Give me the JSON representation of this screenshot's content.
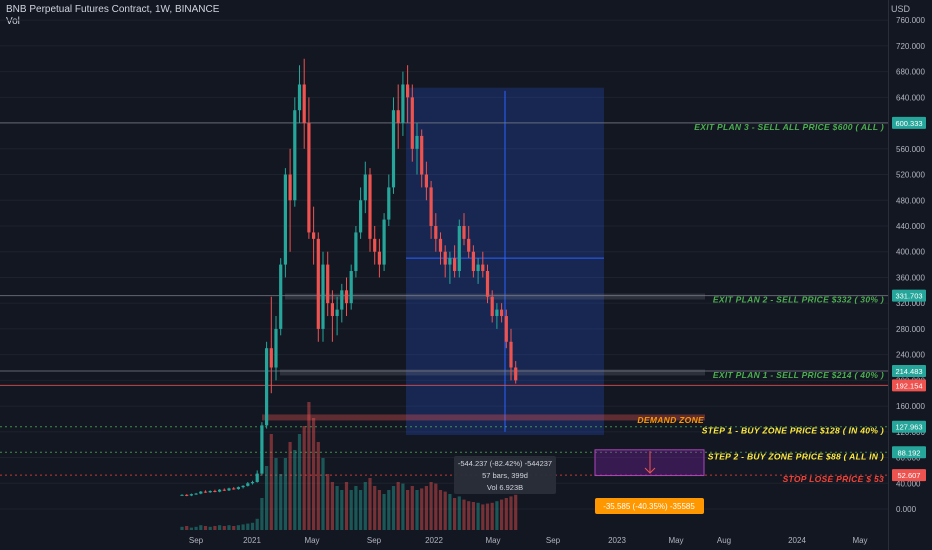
{
  "header": {
    "title": "BNB Perpetual Futures Contract, 1W, BINANCE",
    "vol_label": "Vol"
  },
  "axis": {
    "currency": "USD",
    "ticks": [
      "760.000",
      "720.000",
      "680.000",
      "640.000",
      "600.000",
      "560.000",
      "520.000",
      "480.000",
      "440.000",
      "400.000",
      "360.000",
      "320.000",
      "280.000",
      "240.000",
      "200.000",
      "160.000",
      "120.000",
      "80.000",
      "40.000",
      "0.000"
    ],
    "ticks_values": [
      760,
      720,
      680,
      640,
      600,
      560,
      520,
      480,
      440,
      400,
      360,
      320,
      280,
      240,
      200,
      160,
      120,
      80,
      40,
      0
    ],
    "x_ticks": [
      "Sep",
      "2021",
      "May",
      "Sep",
      "2022",
      "May",
      "Sep",
      "2023",
      "May",
      "Aug",
      "2024",
      "May"
    ]
  },
  "price_tags": [
    {
      "text": "600.333",
      "value": 600.333,
      "bg": "#26a69a"
    },
    {
      "text": "331.703",
      "value": 331.703,
      "bg": "#26a69a"
    },
    {
      "text": "214.483",
      "value": 214.483,
      "bg": "#26a69a"
    },
    {
      "text": "192.154",
      "value": 192.154,
      "bg": "#ef5350"
    },
    {
      "text": "127.963",
      "value": 127.963,
      "bg": "#26a69a"
    },
    {
      "text": "88.192",
      "value": 88.192,
      "bg": "#26a69a"
    },
    {
      "text": "52.607",
      "value": 52.607,
      "bg": "#ef5350"
    }
  ],
  "annotations": [
    {
      "text": "EXIT PLAN 3 - SELL ALL PRICE $600 ( ALL )",
      "color": "#4caf50",
      "value": 600.333
    },
    {
      "text": "EXIT PLAN 2 - SELL PRICE $332 ( 30% )",
      "color": "#4caf50",
      "value": 331.703
    },
    {
      "text": "EXIT PLAN 1 - SELL PRICE $214 ( 40% )",
      "color": "#4caf50",
      "value": 214.483
    },
    {
      "text": "DEMAND ZONE",
      "color": "#ff9800",
      "value": 140
    },
    {
      "text": "STEP 1 - BUY ZONE PRICE $128 ( IN 40% )",
      "color": "#ffeb3b",
      "value": 127.963
    },
    {
      "text": "STEP 2 - BUY ZONE PRICE $88 ( ALL IN )",
      "color": "#ffeb3b",
      "value": 88.192
    },
    {
      "text": "STOP LOSE PRICE $ 53",
      "color": "#f44336",
      "value": 52.607
    }
  ],
  "measure": {
    "line1": "-544.237 (-82.42%) -544237",
    "line2": "57 bars, 399d",
    "line3": "Vol 6.923B"
  },
  "projection": {
    "text": "-35.585 (-40.35%) -35585"
  },
  "colors": {
    "up": "#26a69a",
    "down": "#ef5350",
    "bg": "#131722"
  },
  "chart_data": {
    "type": "candlestick",
    "title": "BNB Perpetual Futures Contract, 1W, BINANCE",
    "ylim": [
      0,
      780
    ],
    "series": [
      {
        "ohlc": [
          [
            22,
            23,
            21,
            22
          ],
          [
            22,
            23,
            20,
            21
          ],
          [
            21,
            24,
            20,
            23
          ],
          [
            23,
            25,
            22,
            24
          ],
          [
            24,
            28,
            23,
            27
          ],
          [
            27,
            29,
            25,
            26
          ],
          [
            26,
            29,
            25,
            28
          ],
          [
            28,
            30,
            26,
            27
          ],
          [
            27,
            31,
            26,
            30
          ],
          [
            30,
            32,
            28,
            29
          ],
          [
            29,
            33,
            28,
            32
          ],
          [
            32,
            34,
            30,
            31
          ],
          [
            31,
            35,
            30,
            34
          ],
          [
            34,
            37,
            32,
            36
          ],
          [
            36,
            42,
            35,
            40
          ],
          [
            40,
            44,
            38,
            42
          ],
          [
            42,
            60,
            41,
            55
          ],
          [
            55,
            135,
            52,
            130
          ],
          [
            130,
            260,
            125,
            250
          ],
          [
            250,
            330,
            180,
            220
          ],
          [
            220,
            300,
            200,
            280
          ],
          [
            280,
            390,
            270,
            380
          ],
          [
            380,
            530,
            360,
            520
          ],
          [
            520,
            560,
            400,
            480
          ],
          [
            480,
            640,
            470,
            620
          ],
          [
            620,
            690,
            600,
            660
          ],
          [
            660,
            700,
            560,
            600
          ],
          [
            600,
            640,
            420,
            430
          ],
          [
            430,
            470,
            380,
            420
          ],
          [
            420,
            430,
            260,
            280
          ],
          [
            280,
            400,
            260,
            380
          ],
          [
            380,
            400,
            300,
            320
          ],
          [
            320,
            340,
            260,
            300
          ],
          [
            300,
            330,
            270,
            310
          ],
          [
            310,
            350,
            290,
            340
          ],
          [
            340,
            360,
            300,
            320
          ],
          [
            320,
            380,
            310,
            370
          ],
          [
            370,
            440,
            360,
            430
          ],
          [
            430,
            500,
            420,
            480
          ],
          [
            480,
            540,
            460,
            520
          ],
          [
            520,
            530,
            400,
            420
          ],
          [
            420,
            440,
            380,
            400
          ],
          [
            400,
            420,
            360,
            380
          ],
          [
            380,
            460,
            370,
            450
          ],
          [
            450,
            520,
            440,
            500
          ],
          [
            500,
            640,
            490,
            620
          ],
          [
            620,
            660,
            560,
            600
          ],
          [
            600,
            680,
            580,
            660
          ],
          [
            660,
            690,
            600,
            640
          ],
          [
            640,
            660,
            540,
            560
          ],
          [
            560,
            600,
            520,
            580
          ],
          [
            580,
            590,
            500,
            520
          ],
          [
            520,
            540,
            480,
            500
          ],
          [
            500,
            510,
            420,
            440
          ],
          [
            440,
            460,
            400,
            420
          ],
          [
            420,
            430,
            380,
            400
          ],
          [
            400,
            410,
            360,
            380
          ],
          [
            380,
            400,
            350,
            390
          ],
          [
            390,
            410,
            360,
            370
          ],
          [
            370,
            450,
            360,
            440
          ],
          [
            440,
            460,
            410,
            420
          ],
          [
            420,
            440,
            390,
            400
          ],
          [
            400,
            410,
            360,
            370
          ],
          [
            370,
            390,
            350,
            380
          ],
          [
            380,
            400,
            360,
            370
          ],
          [
            370,
            380,
            320,
            330
          ],
          [
            330,
            340,
            290,
            300
          ],
          [
            300,
            320,
            280,
            310
          ],
          [
            310,
            320,
            290,
            300
          ],
          [
            300,
            310,
            250,
            260
          ],
          [
            260,
            280,
            200,
            220
          ],
          [
            220,
            230,
            195,
            200
          ]
        ],
        "volume": [
          4,
          5,
          3,
          4,
          6,
          5,
          4,
          5,
          6,
          5,
          6,
          5,
          6,
          7,
          8,
          9,
          14,
          40,
          80,
          120,
          90,
          70,
          90,
          110,
          100,
          120,
          130,
          160,
          140,
          110,
          90,
          70,
          60,
          55,
          50,
          60,
          50,
          55,
          50,
          60,
          65,
          55,
          50,
          45,
          50,
          55,
          60,
          58,
          50,
          55,
          50,
          52,
          55,
          60,
          58,
          50,
          48,
          45,
          40,
          42,
          38,
          36,
          35,
          34,
          32,
          33,
          34,
          36,
          38,
          40,
          42,
          44
        ]
      }
    ]
  }
}
